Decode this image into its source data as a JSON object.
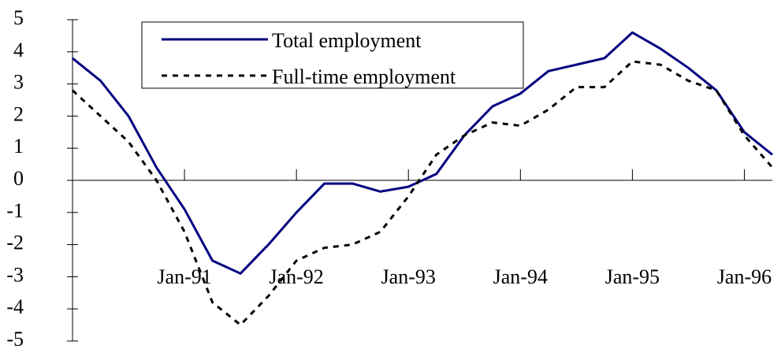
{
  "chart_data": {
    "type": "line",
    "categories": [
      null,
      null,
      null,
      null,
      "Jan-91",
      null,
      null,
      null,
      "Jan-92",
      null,
      null,
      null,
      "Jan-93",
      null,
      null,
      null,
      "Jan-94",
      null,
      null,
      null,
      "Jan-95",
      null,
      null,
      null,
      "Jan-96",
      null
    ],
    "series": [
      {
        "name": "Total employment",
        "color": "#000080",
        "dash": false,
        "values": [
          3.8,
          3.1,
          2.0,
          0.4,
          -0.9,
          -2.5,
          -2.9,
          -2.0,
          -1.0,
          -0.1,
          -0.1,
          -0.35,
          -0.2,
          0.2,
          1.4,
          2.3,
          2.7,
          3.4,
          3.6,
          3.8,
          4.6,
          4.1,
          3.5,
          2.8,
          1.5,
          0.8
        ]
      },
      {
        "name": "Full-time employment",
        "color": "#000000",
        "dash": true,
        "values": [
          2.8,
          2.0,
          1.2,
          0.0,
          -1.6,
          -3.8,
          -4.5,
          -3.6,
          -2.5,
          -2.1,
          -2.0,
          -1.6,
          -0.5,
          0.8,
          1.4,
          1.8,
          1.7,
          2.2,
          2.9,
          2.9,
          3.7,
          3.6,
          3.1,
          2.8,
          1.4,
          0.4
        ]
      }
    ],
    "ylim": [
      -5,
      5
    ],
    "yticks": [
      -5,
      -4,
      -3,
      -2,
      -1,
      0,
      1,
      2,
      3,
      4,
      5
    ]
  }
}
